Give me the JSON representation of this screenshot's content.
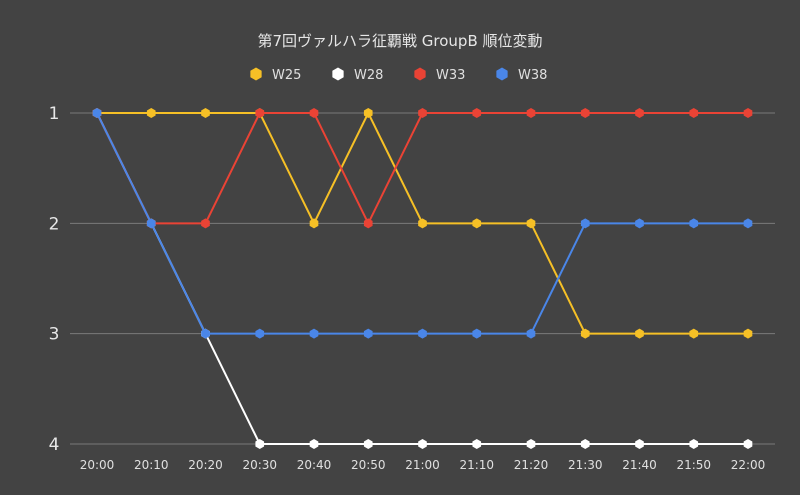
{
  "chart_data": {
    "type": "line",
    "title": "第7回ヴァルハラ征覇戦 GroupB 順位変動",
    "xlabel": "",
    "ylabel": "",
    "y_inverted": true,
    "ylim": [
      1,
      4
    ],
    "y_ticks": [
      "1",
      "2",
      "3",
      "4"
    ],
    "grid": "horizontal",
    "legend_position": "top",
    "marker": "hexagon",
    "background": "#434343",
    "x": [
      "20:00",
      "20:10",
      "20:20",
      "20:30",
      "20:40",
      "20:50",
      "21:00",
      "21:10",
      "21:20",
      "21:30",
      "21:40",
      "21:50",
      "22:00"
    ],
    "series": [
      {
        "name": "W25",
        "color": "#f6c026",
        "values": [
          1,
          1,
          1,
          1,
          2,
          1,
          2,
          2,
          2,
          3,
          3,
          3,
          3
        ]
      },
      {
        "name": "W28",
        "color": "#ffffff",
        "values": [
          1,
          2,
          3,
          4,
          4,
          4,
          4,
          4,
          4,
          4,
          4,
          4,
          4
        ]
      },
      {
        "name": "W33",
        "color": "#ea4335",
        "values": [
          1,
          2,
          2,
          1,
          1,
          2,
          1,
          1,
          1,
          1,
          1,
          1,
          1
        ]
      },
      {
        "name": "W38",
        "color": "#4a86e8",
        "values": [
          1,
          2,
          3,
          3,
          3,
          3,
          3,
          3,
          3,
          2,
          2,
          2,
          2
        ]
      }
    ]
  }
}
